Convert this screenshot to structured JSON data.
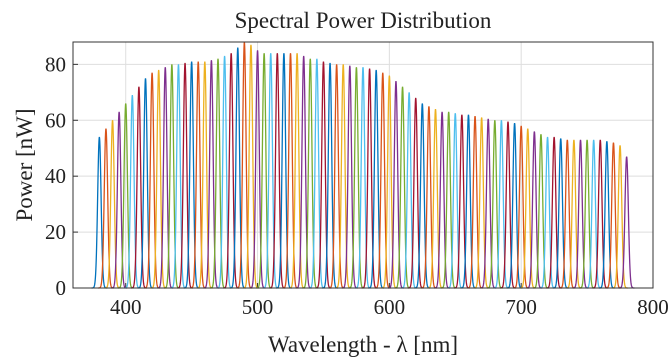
{
  "chart_data": {
    "type": "peaks",
    "title": "Spectral Power Distribution",
    "xlabel": "Wavelength - λ [nm]",
    "ylabel": "Power [nW]",
    "x": [
      380,
      385,
      390,
      395,
      400,
      405,
      410,
      415,
      420,
      425,
      430,
      435,
      440,
      445,
      450,
      455,
      460,
      465,
      470,
      475,
      480,
      485,
      490,
      495,
      500,
      505,
      510,
      515,
      520,
      525,
      530,
      535,
      540,
      545,
      550,
      555,
      560,
      565,
      570,
      575,
      580,
      585,
      590,
      595,
      600,
      605,
      610,
      615,
      620,
      625,
      630,
      635,
      640,
      645,
      650,
      655,
      660,
      665,
      670,
      675,
      680,
      685,
      690,
      695,
      700,
      705,
      710,
      715,
      720,
      725,
      730,
      735,
      740,
      745,
      750,
      755,
      760,
      765,
      770,
      775,
      780
    ],
    "values": [
      54,
      57,
      60,
      63,
      66,
      69,
      72,
      75,
      77,
      78,
      79,
      80,
      80,
      80.5,
      81,
      81,
      81,
      81.5,
      82,
      83,
      84,
      86,
      88,
      87,
      85,
      84,
      84,
      84,
      84,
      84,
      84,
      83,
      82,
      82,
      81,
      80.5,
      80,
      80,
      79.5,
      79,
      79,
      78.5,
      78,
      77,
      76,
      74,
      72,
      70,
      68,
      66,
      65,
      64,
      63,
      63,
      62.5,
      62,
      62,
      61.5,
      61,
      60.5,
      60,
      60,
      59.5,
      59,
      58,
      57,
      56,
      55,
      54,
      54,
      53.5,
      53,
      53,
      53,
      53,
      53,
      53,
      52.5,
      52,
      51,
      47
    ],
    "colors": [
      "#0072BD",
      "#D95319",
      "#EDB120",
      "#7E2F8E",
      "#77AC30",
      "#4DBEEE",
      "#A2142F"
    ],
    "xlim": [
      360,
      800
    ],
    "ylim": [
      0,
      88
    ],
    "xticks": [
      400,
      500,
      600,
      700,
      800
    ],
    "yticks": [
      0,
      20,
      40,
      60,
      80
    ],
    "grid": true
  }
}
